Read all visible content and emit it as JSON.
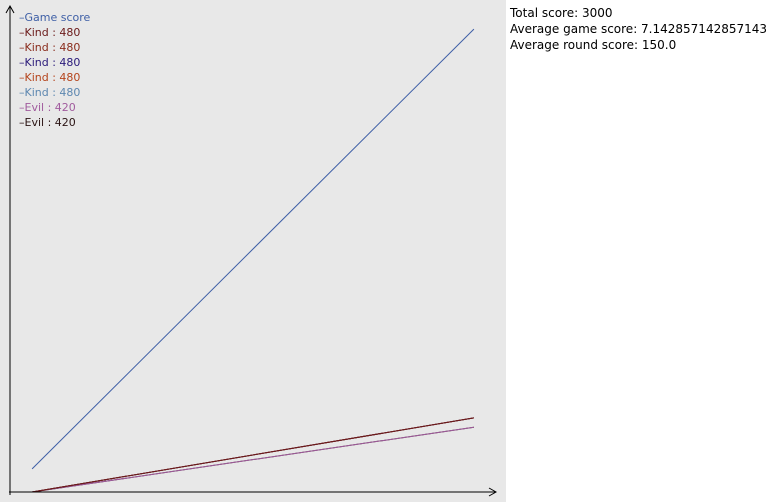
{
  "stats": {
    "total_score": "Total score: 3000",
    "average_game_score": "Average game score: 7.142857142857143",
    "average_round_score": "Average round score: 150.0"
  },
  "chart_data": {
    "type": "line",
    "grid": false,
    "legend_position": "top-left",
    "x": [
      0,
      20
    ],
    "xlim": [
      -1,
      21
    ],
    "ylim": [
      0,
      3150
    ],
    "series": [
      {
        "name": "Game score",
        "label": "–Game score",
        "color": "#3e5fa6",
        "values": [
          150,
          3000
        ]
      },
      {
        "name": "Kind : 480",
        "label": "–Kind : 480",
        "color": "#6b1a1a",
        "values": [
          0,
          480
        ]
      },
      {
        "name": "Kind : 480",
        "label": "–Kind : 480",
        "color": "#8a2c1c",
        "values": [
          0,
          480
        ]
      },
      {
        "name": "Kind : 480",
        "label": "–Kind : 480",
        "color": "#2a1a7a",
        "values": [
          0,
          480
        ]
      },
      {
        "name": "Kind : 480",
        "label": "–Kind : 480",
        "color": "#b5441c",
        "values": [
          0,
          480
        ]
      },
      {
        "name": "Kind : 480",
        "label": "–Kind : 480",
        "color": "#5d87b0",
        "values": [
          0,
          480
        ]
      },
      {
        "name": "Evil : 420",
        "label": "–Evil : 420",
        "color": "#a15c9e",
        "values": [
          0,
          420
        ]
      },
      {
        "name": "Evil : 420",
        "label": "–Evil : 420",
        "color": "#2b1414",
        "values": [
          0,
          420
        ]
      }
    ]
  }
}
